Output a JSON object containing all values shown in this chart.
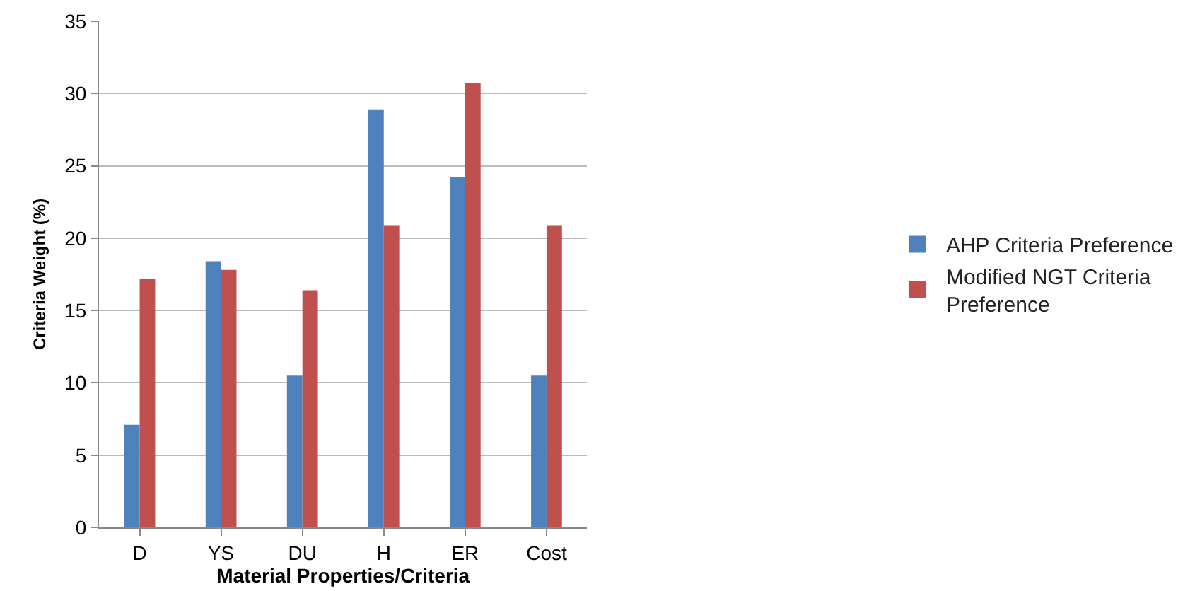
{
  "chart_data": {
    "type": "bar",
    "xlabel": "Material Properties/Criteria",
    "ylabel": "Criteria Weight (%)",
    "categories": [
      "D",
      "YS",
      "DU",
      "H",
      "ER",
      "Cost"
    ],
    "series": [
      {
        "name": "AHP Criteria Preference",
        "color": "#4f81bd",
        "values": [
          7.1,
          18.4,
          10.5,
          28.9,
          24.2,
          10.5
        ]
      },
      {
        "name": "Modified NGT Criteria Preference",
        "color": "#c0504d",
        "values": [
          17.2,
          17.8,
          16.4,
          20.9,
          30.7,
          20.9
        ]
      }
    ],
    "ylim": [
      0,
      35
    ],
    "yticks": [
      0,
      5,
      10,
      15,
      20,
      25,
      30,
      35
    ],
    "grid": "y",
    "legend": "right"
  }
}
